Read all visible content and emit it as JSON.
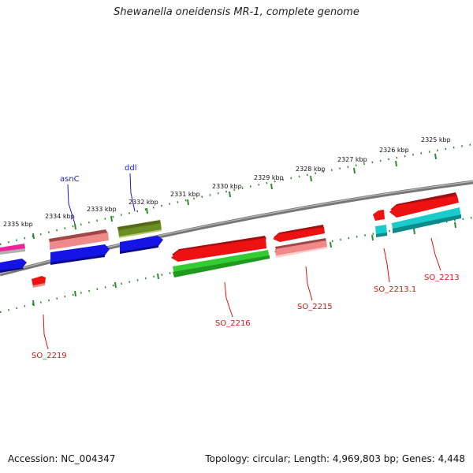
{
  "title": "Shewanella oneidensis MR-1, complete genome",
  "footer": {
    "accession": "Accession: NC_004347",
    "summary": "Topology: circular; Length: 4,969,803 bp; Genes: 4,448"
  },
  "ticks": {
    "positions": [
      "2335 kbp",
      "2334 kbp",
      "2333 kbp",
      "2332 kbp",
      "2331 kbp",
      "2330 kbp",
      "2329 kbp",
      "2328 kbp",
      "2327 kbp",
      "2326 kbp",
      "2325 kbp"
    ]
  },
  "gene_labels": {
    "top": [
      "asnC",
      "ddl"
    ],
    "bottom": [
      "SO_2219",
      "SO_2216",
      "SO_2215",
      "SO_2213.1",
      "SO_2213"
    ]
  },
  "colors": {
    "backbone": "#808080",
    "tick_dots": "#2e8b2e",
    "label_top": "#1a1acc",
    "label_bottom": "#dd1111",
    "gene_red": "#ee1111",
    "gene_pink": "#f08a8a",
    "gene_blue": "#1414e6",
    "gene_olive": "#6b8e23",
    "gene_green": "#33cc33",
    "gene_cyan": "#19cccc",
    "gene_magenta": "#ee2299",
    "gene_gray": "#b0b0b0"
  }
}
